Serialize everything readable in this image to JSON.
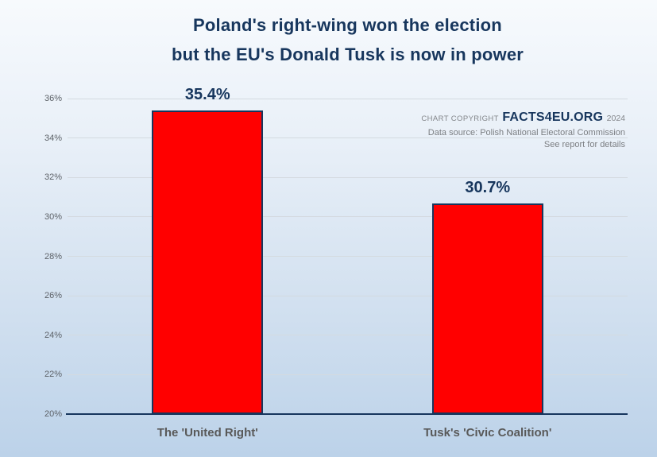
{
  "title": {
    "line1": "Poland's right-wing won the election",
    "line2": "but the EU's Donald Tusk is now in power"
  },
  "copyright": {
    "prefix": "CHART COPYRIGHT",
    "brand": "FACTS4EU.ORG",
    "year": "2024",
    "source": "Data source: Polish National Electoral Commission",
    "note": "See report for details"
  },
  "chart_data": {
    "type": "bar",
    "categories": [
      "The 'United Right'",
      "Tusk's 'Civic Coalition'"
    ],
    "values": [
      35.4,
      30.7
    ],
    "value_labels": [
      "35.4%",
      "30.7%"
    ],
    "title": "Poland's right-wing won the election but the EU's Donald Tusk is now in power",
    "xlabel": "",
    "ylabel": "",
    "ylim": [
      20,
      36
    ],
    "ytick_step": 2,
    "ytick_suffix": "%",
    "grid": true,
    "legend": false,
    "colors": {
      "bar_fill": "#ff0000",
      "bar_border": "#17365d",
      "axis_line": "#17365d",
      "gridline": "#d4dae0",
      "tick_label": "#5d6268",
      "category_label": "#595959",
      "value_label": "#17365d",
      "title_text": "#17365d",
      "background_top": "#f7fafd",
      "background_bottom": "#bcd2e9"
    }
  }
}
